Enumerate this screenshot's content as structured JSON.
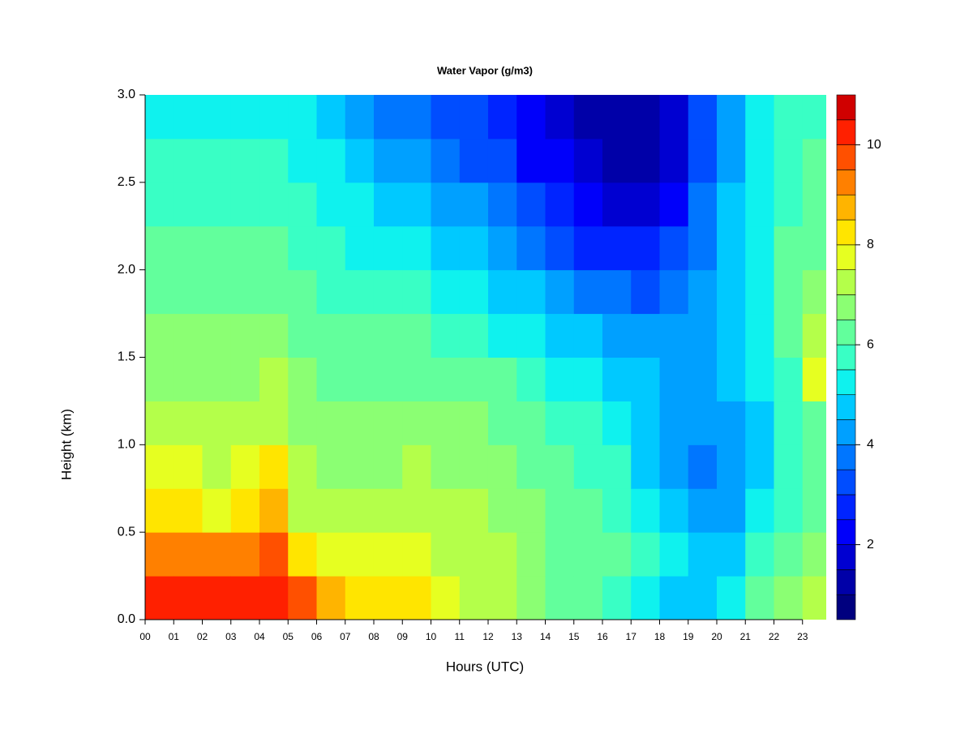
{
  "chart_data": {
    "type": "contour",
    "title": "Water Vapor (g/m3)",
    "xlabel": "Hours (UTC)",
    "ylabel": "Height (km)",
    "x": [
      0,
      1,
      2,
      3,
      4,
      5,
      6,
      7,
      8,
      9,
      10,
      11,
      12,
      13,
      14,
      15,
      16,
      17,
      18,
      19,
      20,
      21,
      22,
      23
    ],
    "y": [
      0,
      0.25,
      0.5,
      0.75,
      1,
      1.25,
      1.5,
      1.75,
      2,
      2.25,
      2.5,
      2.75
    ],
    "z": [
      [
        10,
        9,
        8,
        7.5,
        7,
        6.8,
        6.5,
        6.3,
        6,
        5.8,
        5.5,
        5.3
      ],
      [
        10,
        9,
        8,
        7.5,
        7,
        6.8,
        6.5,
        6.3,
        6,
        5.8,
        5.5,
        5.3
      ],
      [
        10,
        9,
        7.8,
        7.3,
        7,
        6.8,
        6.5,
        6.3,
        6,
        5.8,
        5.5,
        5.3
      ],
      [
        10,
        9.3,
        8.3,
        7.5,
        7.2,
        6.9,
        6.6,
        6.3,
        6,
        5.8,
        5.5,
        5.3
      ],
      [
        10.3,
        9.5,
        8.5,
        8,
        7.3,
        7,
        6.7,
        6.4,
        6.1,
        5.8,
        5.5,
        5.3
      ],
      [
        9.5,
        8,
        7,
        7,
        6.8,
        6.6,
        6.4,
        6.1,
        5.8,
        5.5,
        5.2,
        5
      ],
      [
        8.5,
        7.8,
        7,
        6.8,
        6.6,
        6.4,
        6.2,
        5.9,
        5.6,
        5.3,
        5,
        4.7
      ],
      [
        8,
        7.5,
        7,
        6.8,
        6.6,
        6.4,
        6.1,
        5.8,
        5.4,
        5,
        4.5,
        4.2
      ],
      [
        8,
        7.8,
        7,
        6.8,
        6.6,
        6.4,
        6,
        5.6,
        5.2,
        4.7,
        4.2,
        3.8
      ],
      [
        8,
        7.8,
        7.2,
        7,
        6.8,
        6.4,
        6,
        5.5,
        5,
        4.5,
        4,
        3.5
      ],
      [
        7.5,
        7.3,
        7,
        6.9,
        6.7,
        6.3,
        5.8,
        5.3,
        4.8,
        4.3,
        3.7,
        3.3
      ],
      [
        7.3,
        7.2,
        7,
        6.8,
        6.6,
        6.2,
        5.6,
        5.1,
        4.6,
        4,
        3.4,
        3
      ],
      [
        7,
        7,
        6.8,
        6.6,
        6.4,
        6,
        5.4,
        4.9,
        4.3,
        3.6,
        3,
        2.6
      ],
      [
        6.5,
        6.6,
        6.5,
        6.3,
        6,
        5.7,
        5.2,
        4.7,
        3.8,
        3,
        2.4,
        2
      ],
      [
        6.2,
        6.4,
        6.2,
        6,
        5.8,
        5.4,
        4.9,
        4.3,
        3.3,
        2.6,
        2,
        1.6
      ],
      [
        6,
        6.2,
        6,
        5.8,
        5.5,
        5.1,
        4.6,
        3.8,
        2.8,
        2,
        1.5,
        1.2
      ],
      [
        5.5,
        6,
        5.7,
        5.5,
        5.2,
        4.8,
        4.3,
        3.5,
        2.5,
        1.6,
        1.2,
        1
      ],
      [
        5,
        5.5,
        5,
        4.9,
        4.8,
        4.5,
        4,
        3.4,
        2.6,
        1.8,
        1.3,
        1.1
      ],
      [
        4.8,
        5,
        4.6,
        4.4,
        4.4,
        4.3,
        4,
        3.6,
        3,
        2.3,
        1.8,
        1.6
      ],
      [
        4.7,
        4.5,
        4,
        3.8,
        4,
        4.2,
        4.2,
        4.1,
        3.9,
        3.7,
        3.4,
        3.2
      ],
      [
        5,
        4.6,
        4.2,
        4,
        4.2,
        4.5,
        4.6,
        4.6,
        4.6,
        4.5,
        4.4,
        4.3
      ],
      [
        6,
        5.6,
        5,
        4.8,
        4.8,
        5,
        5.2,
        5.3,
        5.4,
        5.3,
        5.2,
        5.2
      ],
      [
        6.5,
        6.3,
        5.8,
        5.6,
        5.6,
        5.8,
        6,
        6,
        6,
        5.9,
        5.8,
        5.7
      ],
      [
        7,
        6.8,
        6.3,
        6,
        6.2,
        7.5,
        7.3,
        6.7,
        6.4,
        6.2,
        6,
        5.8
      ]
    ],
    "xlim": [
      0,
      23.83
    ],
    "ylim": [
      0,
      3
    ],
    "xticks": [
      {
        "value": 0,
        "label": "00"
      },
      {
        "value": 1,
        "label": "01"
      },
      {
        "value": 2,
        "label": "02"
      },
      {
        "value": 3,
        "label": "03"
      },
      {
        "value": 4,
        "label": "04"
      },
      {
        "value": 5,
        "label": "05"
      },
      {
        "value": 6,
        "label": "06"
      },
      {
        "value": 7,
        "label": "07"
      },
      {
        "value": 8,
        "label": "08"
      },
      {
        "value": 9,
        "label": "09"
      },
      10,
      11,
      12,
      13,
      14,
      15,
      16,
      17,
      18,
      19,
      20,
      21,
      22,
      23
    ],
    "yticks": [
      {
        "value": 0,
        "label": "0.0"
      },
      0.5,
      {
        "value": 1,
        "label": "1.0"
      },
      1.5,
      {
        "value": 2,
        "label": "2.0"
      },
      2.5,
      {
        "value": 3,
        "label": "3.0"
      }
    ],
    "levels": [
      0.5,
      1,
      1.5,
      2,
      2.5,
      3,
      3.5,
      4,
      4.5,
      5,
      5.5,
      6,
      6.5,
      7,
      7.5,
      8,
      8.5,
      9,
      9.5,
      10,
      10.5,
      11
    ],
    "colors": [
      "#00007F",
      "#0000A8",
      "#0000D1",
      "#0000FA",
      "#0024FF",
      "#004DFF",
      "#0076FF",
      "#00A0FF",
      "#00C9FF",
      "#0FF2EE",
      "#39FFC5",
      "#62FF9C",
      "#8BFF73",
      "#B4FF4A",
      "#E6FF21",
      "#FFE500",
      "#FFB400",
      "#FF8000",
      "#FF5000",
      "#FF2000",
      "#D00000",
      "#800000"
    ],
    "colorbar_ticks": [
      2,
      4,
      6,
      8,
      10
    ]
  }
}
